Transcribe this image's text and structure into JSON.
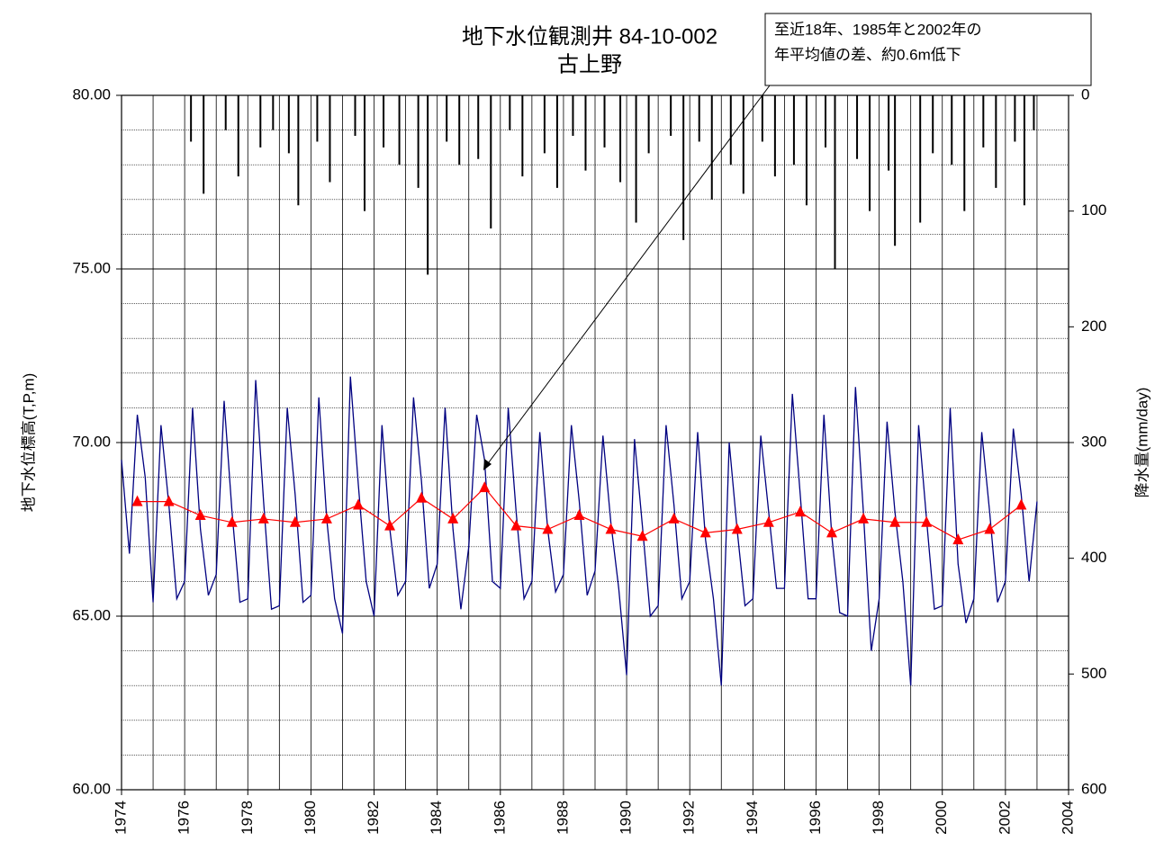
{
  "chart_data": {
    "type": "line",
    "title": "地下水位観測井 84-10-002",
    "subtitle": "古上野",
    "annotation": [
      "至近18年、1985年と2002年の",
      "年平均値の差、約0.6m低下"
    ],
    "y_label": "地下水位標高(T,P,m)",
    "y2_label": "降水量(mm/day)",
    "xlim": [
      1974,
      2004
    ],
    "xticks": [
      1974,
      1976,
      1978,
      1980,
      1982,
      1984,
      1986,
      1988,
      1990,
      1992,
      1994,
      1996,
      1998,
      2000,
      2002,
      2004
    ],
    "ylim": [
      60,
      80
    ],
    "yticks": [
      {
        "value": 60,
        "label": "60.00"
      },
      {
        "value": 65,
        "label": "65.00"
      },
      {
        "value": 70,
        "label": "70.00"
      },
      {
        "value": 75,
        "label": "75.00"
      },
      {
        "value": 80,
        "label": "80.00"
      }
    ],
    "y2lim": [
      0,
      600
    ],
    "y2ticks": [
      0,
      100,
      200,
      300,
      400,
      500,
      600
    ],
    "y2_inverted": true,
    "grid": true,
    "series": [
      {
        "type": "line",
        "color": "#000080",
        "x": [
          1974,
          1974.25,
          1974.5,
          1974.75,
          1975,
          1975.25,
          1975.5,
          1975.75,
          1976,
          1976.25,
          1976.5,
          1976.75,
          1977,
          1977.25,
          1977.5,
          1977.75,
          1978,
          1978.25,
          1978.5,
          1978.75,
          1979,
          1979.25,
          1979.5,
          1979.75,
          1980,
          1980.25,
          1980.5,
          1980.75,
          1981,
          1981.25,
          1981.5,
          1981.75,
          1982,
          1982.25,
          1982.5,
          1982.75,
          1983,
          1983.25,
          1983.5,
          1983.75,
          1984,
          1984.25,
          1984.5,
          1984.75,
          1985,
          1985.25,
          1985.5,
          1985.75,
          1986,
          1986.25,
          1986.5,
          1986.75,
          1987,
          1987.25,
          1987.5,
          1987.75,
          1988,
          1988.25,
          1988.5,
          1988.75,
          1989,
          1989.25,
          1989.5,
          1989.75,
          1990,
          1990.25,
          1990.5,
          1990.75,
          1991,
          1991.25,
          1991.5,
          1991.75,
          1992,
          1992.25,
          1992.5,
          1992.75,
          1993,
          1993.25,
          1993.5,
          1993.75,
          1994,
          1994.25,
          1994.5,
          1994.75,
          1995,
          1995.25,
          1995.5,
          1995.75,
          1996,
          1996.25,
          1996.5,
          1996.75,
          1997,
          1997.25,
          1997.5,
          1997.75,
          1998,
          1998.25,
          1998.5,
          1998.75,
          1999,
          1999.25,
          1999.5,
          1999.75,
          2000,
          2000.25,
          2000.5,
          2000.75,
          2001,
          2001.25,
          2001.5,
          2001.75,
          2002,
          2002.25,
          2002.5,
          2002.75,
          2003
        ],
        "values": [
          69.5,
          66.8,
          70.8,
          69.0,
          65.4,
          70.5,
          68.2,
          65.5,
          66.0,
          71.0,
          67.5,
          65.6,
          66.2,
          71.2,
          68.0,
          65.4,
          65.5,
          71.8,
          68.3,
          65.2,
          65.3,
          71.0,
          68.5,
          65.4,
          65.6,
          71.3,
          67.8,
          65.5,
          64.5,
          71.9,
          68.8,
          66.0,
          65.0,
          70.5,
          67.5,
          65.6,
          66.0,
          71.3,
          68.9,
          65.8,
          66.5,
          71.0,
          67.5,
          65.2,
          67.0,
          70.8,
          69.5,
          66.0,
          65.8,
          71.0,
          68.0,
          65.5,
          66.0,
          70.3,
          67.5,
          65.7,
          66.2,
          70.5,
          68.3,
          65.6,
          66.3,
          70.2,
          67.7,
          65.8,
          63.3,
          70.1,
          67.6,
          65.0,
          65.3,
          70.5,
          68.2,
          65.5,
          66.0,
          70.3,
          67.2,
          65.5,
          63.0,
          70.0,
          67.5,
          65.3,
          65.5,
          70.2,
          68.0,
          65.8,
          65.8,
          71.4,
          68.5,
          65.5,
          65.5,
          70.8,
          67.3,
          65.1,
          65.0,
          71.6,
          68.0,
          64.0,
          65.5,
          70.6,
          68.0,
          66.0,
          63.0,
          70.5,
          67.8,
          65.2,
          65.3,
          71.0,
          66.5,
          64.8,
          65.5,
          70.3,
          68.0,
          65.4,
          66.0,
          70.4,
          68.5,
          66.0,
          68.3
        ]
      },
      {
        "type": "line",
        "color": "#ff0000",
        "marker": "triangle",
        "x": [
          1974.5,
          1975.5,
          1976.5,
          1977.5,
          1978.5,
          1979.5,
          1980.5,
          1981.5,
          1982.5,
          1983.5,
          1984.5,
          1985.5,
          1986.5,
          1987.5,
          1988.5,
          1989.5,
          1990.5,
          1991.5,
          1992.5,
          1993.5,
          1994.5,
          1995.5,
          1996.5,
          1997.5,
          1998.5,
          1999.5,
          2000.5,
          2001.5,
          2002.5
        ],
        "values": [
          68.3,
          68.3,
          67.9,
          67.7,
          67.8,
          67.7,
          67.8,
          68.2,
          67.6,
          68.4,
          67.8,
          68.7,
          67.6,
          67.5,
          67.9,
          67.5,
          67.3,
          67.8,
          67.4,
          67.5,
          67.7,
          68.0,
          67.4,
          67.8,
          67.7,
          67.7,
          67.2,
          67.5,
          68.2
        ]
      },
      {
        "type": "bar",
        "color": "#000000",
        "axis": "y2",
        "x": [
          1976.2,
          1976.6,
          1977.3,
          1977.7,
          1978.4,
          1978.8,
          1979.3,
          1979.6,
          1980.2,
          1980.6,
          1981.4,
          1981.7,
          1982.3,
          1982.8,
          1983.4,
          1983.7,
          1984.3,
          1984.7,
          1985.3,
          1985.7,
          1986.3,
          1986.7,
          1987.4,
          1987.8,
          1988.3,
          1988.7,
          1989.3,
          1989.8,
          1990.3,
          1990.7,
          1991.4,
          1991.8,
          1992.3,
          1992.7,
          1993.3,
          1993.7,
          1994.3,
          1994.7,
          1995.3,
          1995.7,
          1996.3,
          1996.6,
          1997.3,
          1997.7,
          1998.3,
          1998.5,
          1999.3,
          1999.7,
          2000.3,
          2000.7,
          2001.3,
          2001.7,
          2002.3,
          2002.6,
          2002.9
        ],
        "values": [
          40,
          85,
          30,
          70,
          45,
          30,
          50,
          95,
          40,
          75,
          35,
          100,
          45,
          60,
          80,
          155,
          40,
          60,
          55,
          115,
          30,
          70,
          50,
          80,
          35,
          65,
          45,
          75,
          110,
          50,
          35,
          125,
          40,
          90,
          60,
          85,
          40,
          70,
          60,
          95,
          45,
          150,
          55,
          100,
          65,
          130,
          110,
          50,
          60,
          100,
          45,
          80,
          40,
          95,
          30
        ]
      }
    ]
  }
}
